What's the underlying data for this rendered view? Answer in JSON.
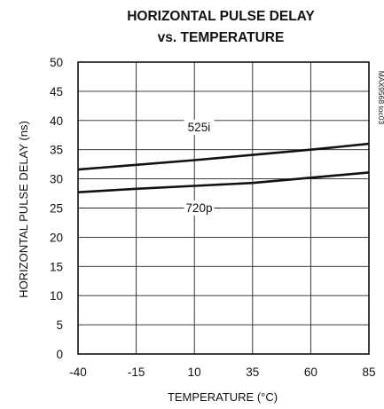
{
  "chart_data": {
    "type": "line",
    "title_lines": [
      "HORIZONTAL PULSE DELAY",
      "vs. TEMPERATURE"
    ],
    "xlabel": "TEMPERATURE (°C)",
    "ylabel": "HORIZONTAL PULSE DELAY (ns)",
    "xlim": [
      -40,
      85
    ],
    "ylim": [
      0,
      50
    ],
    "x_ticks": [
      -40,
      -15,
      10,
      35,
      60,
      85
    ],
    "y_ticks": [
      0,
      5,
      10,
      15,
      20,
      25,
      30,
      35,
      40,
      45,
      50
    ],
    "grid": true,
    "side_label": "MAX9568 toc03",
    "series": [
      {
        "name": "525i",
        "x": [
          -40,
          -15,
          10,
          35,
          60,
          85
        ],
        "y": [
          31.6,
          32.4,
          33.2,
          34.1,
          35.0,
          36.0
        ]
      },
      {
        "name": "720p",
        "x": [
          -40,
          -15,
          10,
          35,
          60,
          85
        ],
        "y": [
          27.7,
          28.3,
          28.8,
          29.3,
          30.2,
          31.1
        ]
      }
    ],
    "series_labels": [
      {
        "series": "525i",
        "x": 12,
        "y": 38.3
      },
      {
        "series": "720p",
        "x": 12,
        "y": 24.5
      }
    ]
  }
}
